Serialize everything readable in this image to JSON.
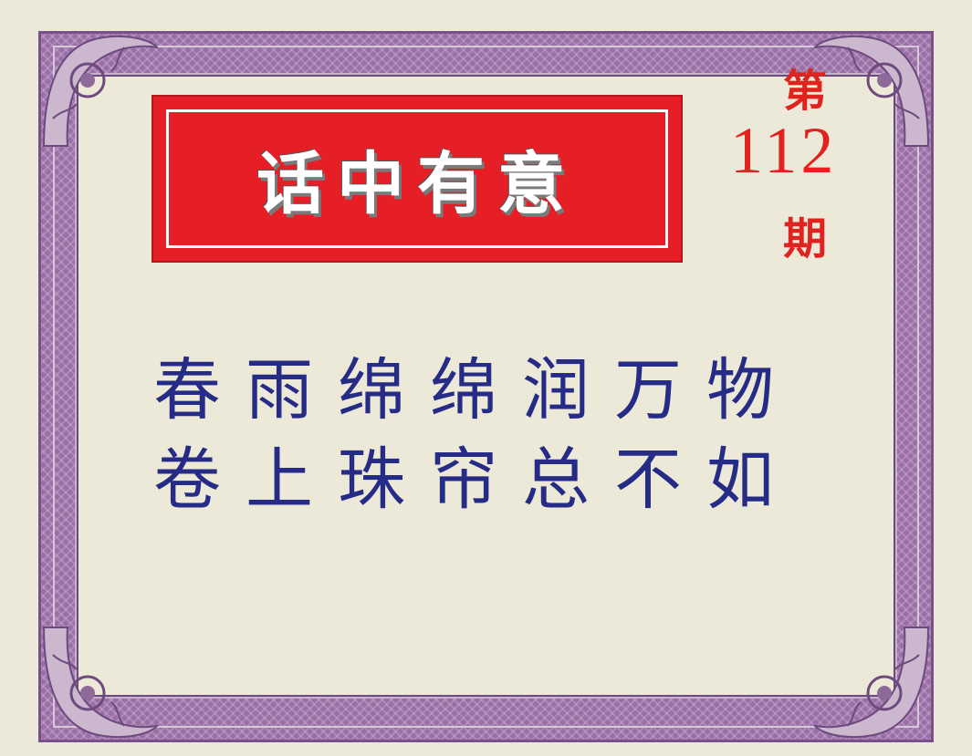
{
  "title": "话中有意",
  "issue": {
    "prefix": "第",
    "number": "112",
    "suffix": "期"
  },
  "poem": {
    "lines": [
      "春雨绵绵润万物",
      "卷上珠帘总不如"
    ]
  },
  "colors": {
    "banner_red": "#e51f25",
    "border_purple": "#9a6fa6",
    "issue_red": "#e0231e",
    "poem_blue": "#262c86",
    "background": "#ede9d8"
  }
}
